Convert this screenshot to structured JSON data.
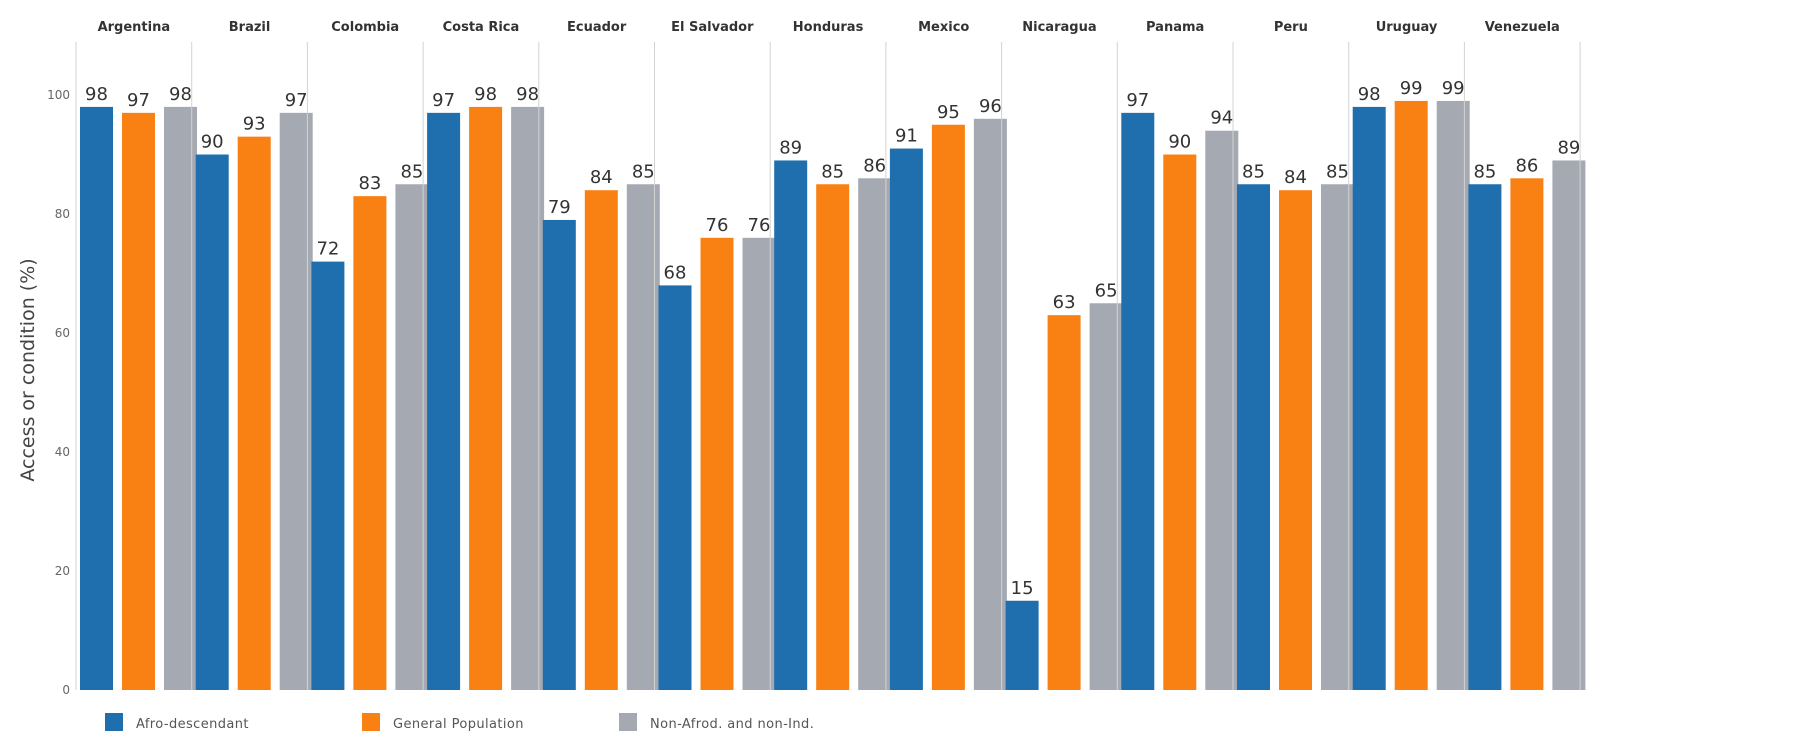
{
  "chart_data": {
    "type": "bar",
    "title": "",
    "xlabel": "",
    "ylabel": "Access or condition (%)",
    "ylim": [
      0,
      108
    ],
    "yticks": [
      0,
      20,
      40,
      60,
      80,
      100
    ],
    "grid": false,
    "legend_position": "bottom-left",
    "categories": [
      "Argentina",
      "Brazil",
      "Colombia",
      "Costa Rica",
      "Ecuador",
      "El Salvador",
      "Honduras",
      "Mexico",
      "Nicaragua",
      "Panama",
      "Peru",
      "Uruguay",
      "Venezuela"
    ],
    "series": [
      {
        "name": "Afro-descendant",
        "color": "#1f6fae",
        "values": [
          98,
          90,
          72,
          97,
          79,
          68,
          89,
          91,
          15,
          97,
          85,
          98,
          85
        ]
      },
      {
        "name": "General Population",
        "color": "#f98013",
        "values": [
          97,
          93,
          83,
          98,
          84,
          76,
          85,
          95,
          63,
          90,
          84,
          99,
          86
        ]
      },
      {
        "name": "Non-Afrod. and non-Ind.",
        "color": "#a5aab2",
        "values": [
          98,
          97,
          85,
          98,
          85,
          76,
          86,
          96,
          65,
          94,
          85,
          99,
          89
        ]
      }
    ]
  }
}
